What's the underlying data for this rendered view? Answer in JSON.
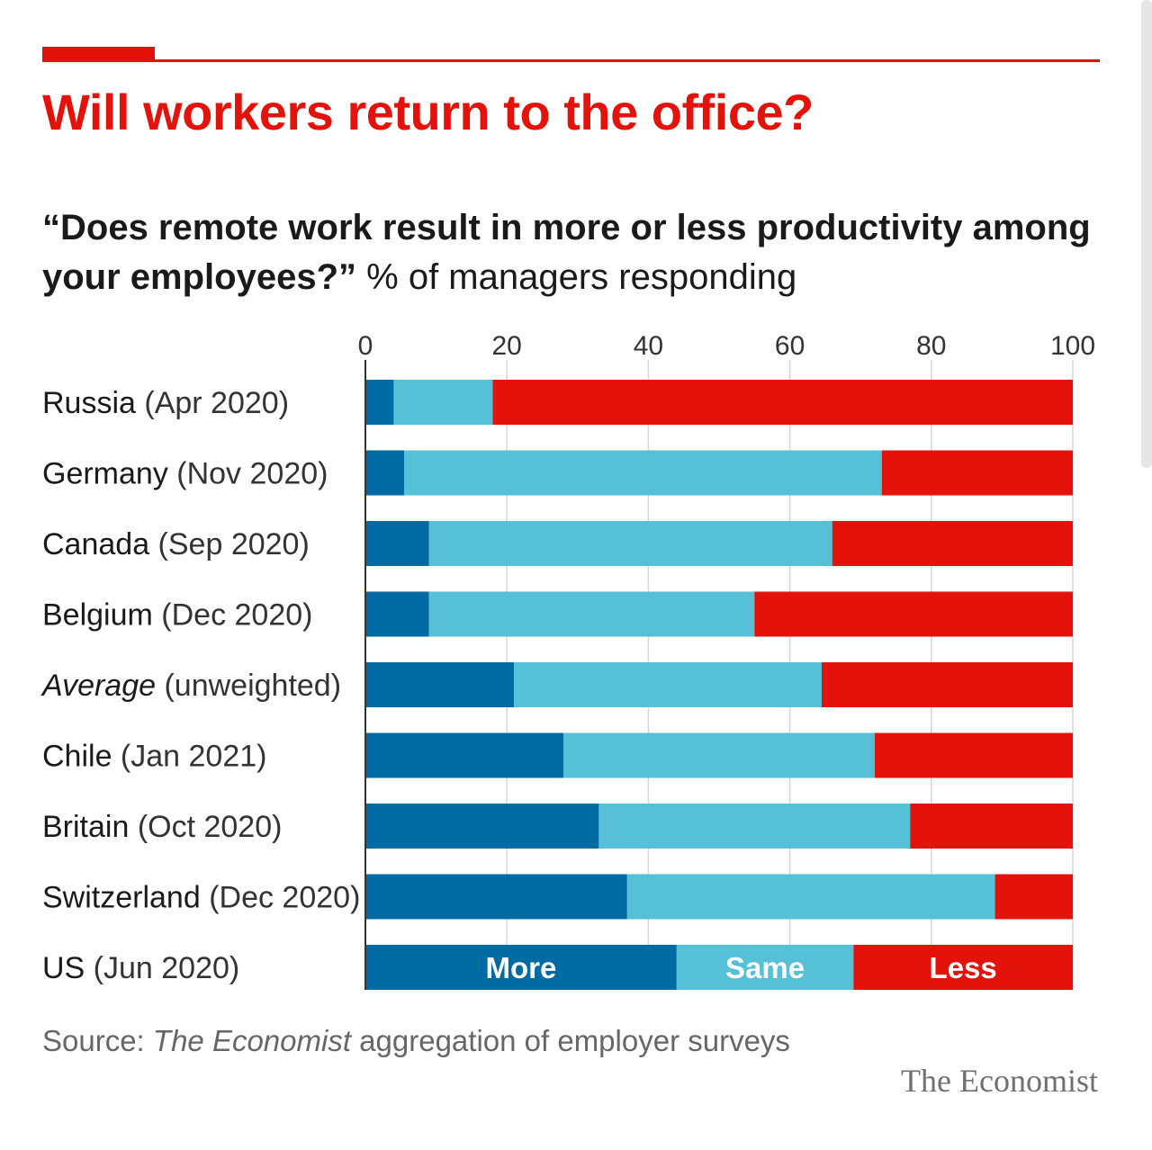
{
  "title": "Will workers return to the office?",
  "subtitle_question": "“Does remote work result in more or less productivity among your employees?”",
  "subtitle_unit": "% of managers responding",
  "source_prefix": "Source:",
  "source_publication": "The Economist",
  "source_suffix": "aggregation of employer surveys",
  "brand": "The Economist",
  "colors": {
    "accent": "#e3120b",
    "more": "#006ba2",
    "same": "#56c1d6",
    "less": "#e3120b"
  },
  "chart_data": {
    "type": "bar",
    "orientation": "horizontal",
    "stacked": true,
    "xlim": [
      0,
      100
    ],
    "xticks": [
      "0",
      "20",
      "40",
      "60",
      "80",
      "100"
    ],
    "grid": true,
    "legend": "inline labels in the last bar",
    "categories": [
      {
        "name": "Russia",
        "detail": "(Apr 2020)",
        "italic": false
      },
      {
        "name": "Germany",
        "detail": "(Nov 2020)",
        "italic": false
      },
      {
        "name": "Canada",
        "detail": "(Sep 2020)",
        "italic": false
      },
      {
        "name": "Belgium",
        "detail": "(Dec 2020)",
        "italic": false
      },
      {
        "name": "Average",
        "detail": "(unweighted)",
        "italic": true
      },
      {
        "name": "Chile",
        "detail": "(Jan 2021)",
        "italic": false
      },
      {
        "name": "Britain",
        "detail": "(Oct 2020)",
        "italic": false
      },
      {
        "name": "Switzerland",
        "detail": "(Dec 2020)",
        "italic": false
      },
      {
        "name": "US",
        "detail": "(Jun 2020)",
        "italic": false
      }
    ],
    "series": [
      {
        "name": "More",
        "color": "#006ba2",
        "values": [
          4,
          5.5,
          9,
          9,
          21,
          28,
          33,
          37,
          44
        ]
      },
      {
        "name": "Same",
        "color": "#56c1d6",
        "values": [
          14,
          67.5,
          57,
          46,
          43.5,
          44,
          44,
          52,
          25
        ]
      },
      {
        "name": "Less",
        "color": "#e3120b",
        "values": [
          82,
          27,
          34,
          45,
          35.5,
          28,
          23,
          11,
          31
        ]
      }
    ]
  }
}
